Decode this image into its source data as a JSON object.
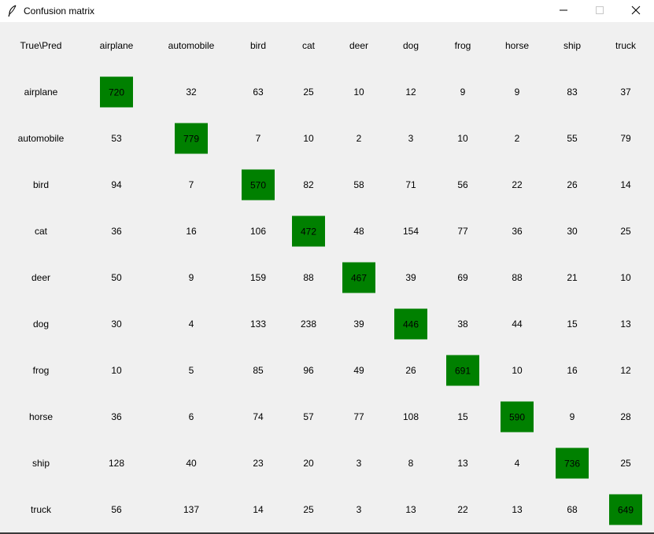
{
  "window": {
    "title": "Confusion matrix",
    "diagonal_color": "#008000",
    "icons": [
      "feather-icon",
      "minimize-icon",
      "maximize-icon",
      "close-icon"
    ]
  },
  "matrix": {
    "corner": "True\\Pred",
    "col_labels": [
      "airplane",
      "automobile",
      "bird",
      "cat",
      "deer",
      "dog",
      "frog",
      "horse",
      "ship",
      "truck"
    ],
    "row_labels": [
      "airplane",
      "automobile",
      "bird",
      "cat",
      "deer",
      "dog",
      "frog",
      "horse",
      "ship",
      "truck"
    ],
    "values": [
      [
        720,
        32,
        63,
        25,
        10,
        12,
        9,
        9,
        83,
        37
      ],
      [
        53,
        779,
        7,
        10,
        2,
        3,
        10,
        2,
        55,
        79
      ],
      [
        94,
        7,
        570,
        82,
        58,
        71,
        56,
        22,
        26,
        14
      ],
      [
        36,
        16,
        106,
        472,
        48,
        154,
        77,
        36,
        30,
        25
      ],
      [
        50,
        9,
        159,
        88,
        467,
        39,
        69,
        88,
        21,
        10
      ],
      [
        30,
        4,
        133,
        238,
        39,
        446,
        38,
        44,
        15,
        13
      ],
      [
        10,
        5,
        85,
        96,
        49,
        26,
        691,
        10,
        16,
        12
      ],
      [
        36,
        6,
        74,
        57,
        77,
        108,
        15,
        590,
        9,
        28
      ],
      [
        128,
        40,
        23,
        20,
        3,
        8,
        13,
        4,
        736,
        25
      ],
      [
        56,
        137,
        14,
        25,
        3,
        13,
        22,
        13,
        68,
        649
      ]
    ]
  }
}
